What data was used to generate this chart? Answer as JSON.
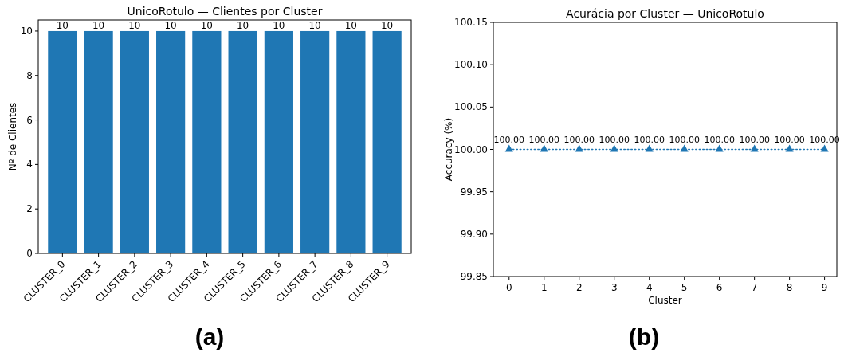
{
  "chart_data": [
    {
      "type": "bar",
      "title": "UnicoRotulo — Clientes por Cluster",
      "ylabel": "Nº de Clientes",
      "categories": [
        "CLUSTER_0",
        "CLUSTER_1",
        "CLUSTER_2",
        "CLUSTER_3",
        "CLUSTER_4",
        "CLUSTER_5",
        "CLUSTER_6",
        "CLUSTER_7",
        "CLUSTER_8",
        "CLUSTER_9"
      ],
      "values": [
        10,
        10,
        10,
        10,
        10,
        10,
        10,
        10,
        10,
        10
      ],
      "color": "#1f77b4",
      "ylim": [
        0,
        10.5
      ],
      "yticks": [
        0,
        2,
        4,
        6,
        8,
        10
      ],
      "data_labels": true,
      "grid": false,
      "annotations": [
        "(a)"
      ]
    },
    {
      "type": "line",
      "title": "Acurácia por Cluster — UnicoRotulo",
      "xlabel": "Cluster",
      "ylabel": "Accuracy (%)",
      "x": [
        0,
        1,
        2,
        3,
        4,
        5,
        6,
        7,
        8,
        9
      ],
      "values": [
        100,
        100,
        100,
        100,
        100,
        100,
        100,
        100,
        100,
        100
      ],
      "value_labels": [
        "100.00",
        "100.00",
        "100.00",
        "100.00",
        "100.00",
        "100.00",
        "100.00",
        "100.00",
        "100.00",
        "100.00"
      ],
      "color": "#1f77b4",
      "marker": "triangle",
      "line_style": "dotted",
      "xlim": [
        -0.45,
        9.35
      ],
      "xticks": [
        0,
        1,
        2,
        3,
        4,
        5,
        6,
        7,
        8,
        9
      ],
      "ylim": [
        99.85,
        100.15
      ],
      "yticks": [
        {
          "value": 99.85,
          "label": "99.85"
        },
        {
          "value": 99.9,
          "label": "99.90"
        },
        {
          "value": 99.95,
          "label": "99.95"
        },
        {
          "value": 100,
          "label": "100.00"
        },
        {
          "value": 100.05,
          "label": "100.05"
        },
        {
          "value": 100.1,
          "label": "100.10"
        },
        {
          "value": 100.15,
          "label": "100.15"
        }
      ],
      "grid": false,
      "annotations": [
        "(b)"
      ]
    }
  ]
}
